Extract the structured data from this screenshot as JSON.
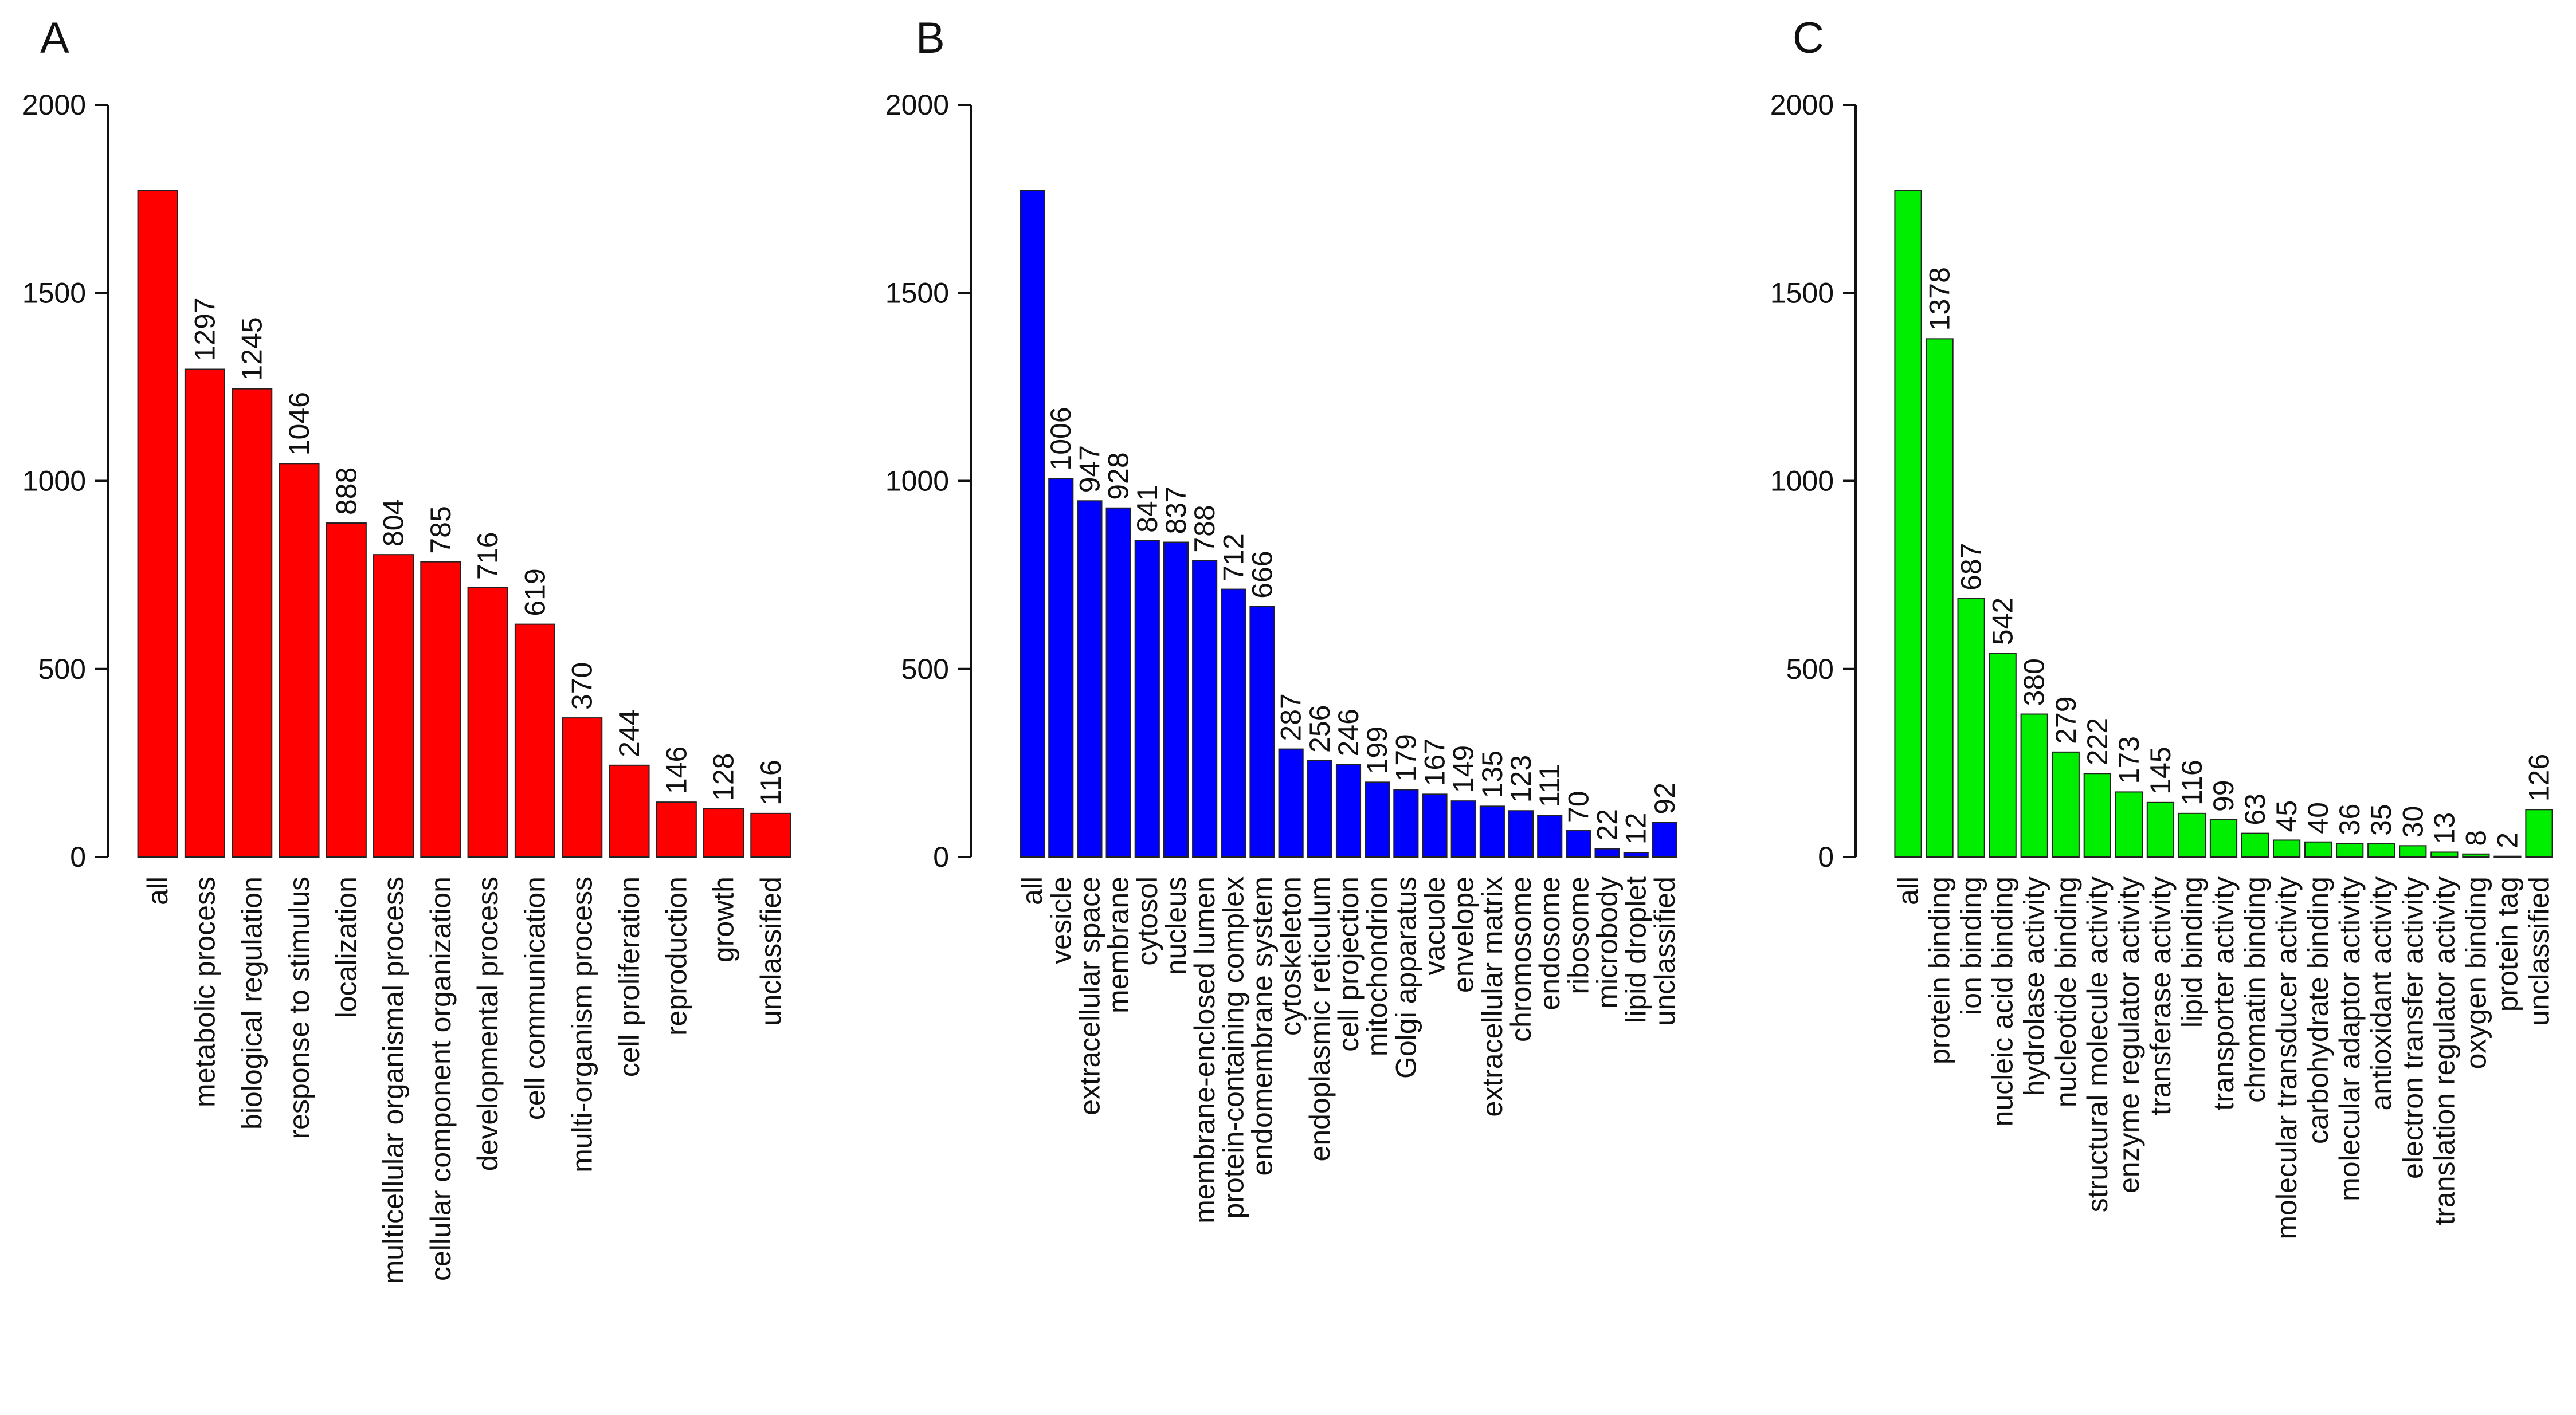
{
  "chart_data": [
    {
      "type": "bar",
      "panel_label": "A",
      "color": "#ff0000",
      "categories": [
        "all",
        "metabolic process",
        "biological regulation",
        "response to stimulus",
        "localization",
        "multicellular organismal process",
        "cellular component organization",
        "developmental process",
        "cell communication",
        "multi-organism process",
        "cell proliferation",
        "reproduction",
        "growth",
        "unclassified"
      ],
      "values": [
        1772,
        1297,
        1245,
        1046,
        888,
        804,
        785,
        716,
        619,
        370,
        244,
        146,
        128,
        116
      ],
      "data_labels": [
        "",
        "1297",
        "1245",
        "1046",
        "888",
        "804",
        "785",
        "716",
        "619",
        "370",
        "244",
        "146",
        "128",
        "116"
      ],
      "ylim": [
        0,
        2000
      ],
      "yticks": [
        "0",
        "500",
        "1000",
        "1500",
        "2000"
      ],
      "title": "",
      "xlabel": "",
      "ylabel": "",
      "grid": false
    },
    {
      "type": "bar",
      "panel_label": "B",
      "color": "#0000ff",
      "categories": [
        "all",
        "vesicle",
        "extracellular space",
        "membrane",
        "cytosol",
        "nucleus",
        "membrane-enclosed lumen",
        "protein-containing complex",
        "endomembrane system",
        "cytoskeleton",
        "endoplasmic reticulum",
        "cell projection",
        "mitochondrion",
        "Golgi apparatus",
        "vacuole",
        "envelope",
        "extracellular matrix",
        "chromosome",
        "endosome",
        "ribosome",
        "microbody",
        "lipid droplet",
        "unclassified"
      ],
      "values": [
        1772,
        1006,
        947,
        928,
        841,
        837,
        788,
        712,
        666,
        287,
        256,
        246,
        199,
        179,
        167,
        149,
        135,
        123,
        111,
        70,
        22,
        12,
        92
      ],
      "data_labels": [
        "",
        "1006",
        "947",
        "928",
        "841",
        "837",
        "788",
        "712",
        "666",
        "287",
        "256",
        "246",
        "199",
        "179",
        "167",
        "149",
        "135",
        "123",
        "111",
        "70",
        "22",
        "12",
        "92"
      ],
      "ylim": [
        0,
        2000
      ],
      "yticks": [
        "0",
        "500",
        "1000",
        "1500",
        "2000"
      ],
      "title": "",
      "xlabel": "",
      "ylabel": "",
      "grid": false
    },
    {
      "type": "bar",
      "panel_label": "C",
      "color": "#00ee00",
      "categories": [
        "all",
        "protein binding",
        "ion binding",
        "nucleic acid binding",
        "hydrolase activity",
        "nucleotide binding",
        "structural molecule activity",
        "enzyme regulator activity",
        "transferase activity",
        "lipid binding",
        "transporter activity",
        "chromatin binding",
        "molecular transducer activity",
        "carbohydrate binding",
        "molecular adaptor activity",
        "antioxidant activity",
        "electron transfer activity",
        "translation regulator activity",
        "oxygen binding",
        "protein tag",
        "unclassified"
      ],
      "values": [
        1772,
        1378,
        687,
        542,
        380,
        279,
        222,
        173,
        145,
        116,
        99,
        63,
        45,
        40,
        36,
        35,
        30,
        13,
        8,
        2,
        126
      ],
      "data_labels": [
        "",
        "1378",
        "687",
        "542",
        "380",
        "279",
        "222",
        "173",
        "145",
        "116",
        "99",
        "63",
        "45",
        "40",
        "36",
        "35",
        "30",
        "13",
        "8",
        "2",
        "126"
      ],
      "ylim": [
        0,
        2000
      ],
      "yticks": [
        "0",
        "500",
        "1000",
        "1500",
        "2000"
      ],
      "title": "",
      "xlabel": "",
      "ylabel": "",
      "grid": false
    }
  ]
}
